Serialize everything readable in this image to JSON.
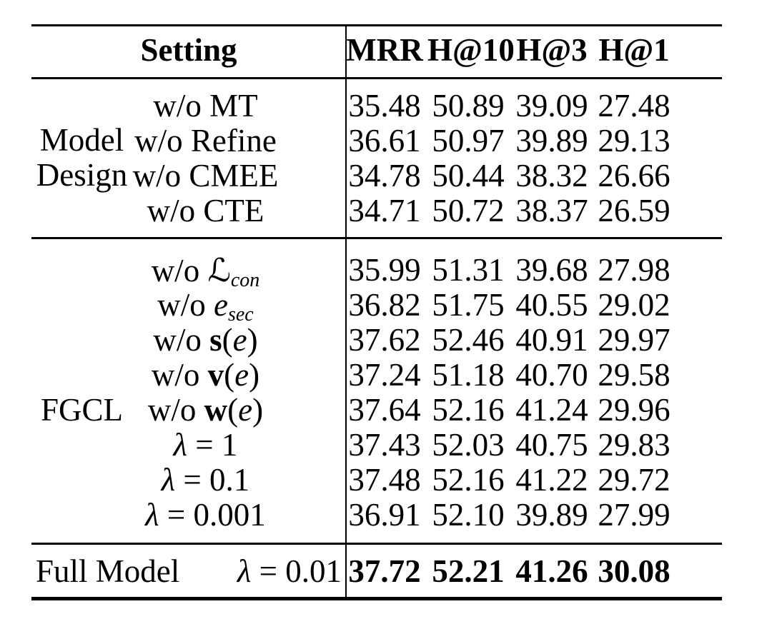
{
  "colors": {
    "text": "#000000",
    "background": "#ffffff",
    "rule": "#000000"
  },
  "header": {
    "setting": "Setting",
    "metrics": [
      "MRR",
      "H@10",
      "H@3",
      "H@1"
    ]
  },
  "groups": [
    {
      "label": "Model Design",
      "rows": [
        {
          "setting": "w/o MT",
          "values": [
            "35.48",
            "50.89",
            "39.09",
            "27.48"
          ]
        },
        {
          "setting": "w/o Refine",
          "values": [
            "36.61",
            "50.97",
            "39.89",
            "29.13"
          ]
        },
        {
          "setting": "w/o CMEE",
          "values": [
            "34.78",
            "50.44",
            "38.32",
            "26.66"
          ]
        },
        {
          "setting": "w/o CTE",
          "values": [
            "34.71",
            "50.72",
            "38.37",
            "26.59"
          ]
        }
      ]
    },
    {
      "label": "FGCL",
      "rows": [
        {
          "pre": "w/o ",
          "main": "ℒ",
          "sub": "con",
          "values": [
            "35.99",
            "51.31",
            "39.68",
            "27.98"
          ]
        },
        {
          "pre": "w/o ",
          "main": "e",
          "sub": "sec",
          "values": [
            "36.82",
            "51.75",
            "40.55",
            "29.02"
          ]
        },
        {
          "pre": "w/o ",
          "main": "s",
          "open": "(",
          "arg": "e",
          "close": ")",
          "values": [
            "37.62",
            "52.46",
            "40.91",
            "29.97"
          ]
        },
        {
          "pre": "w/o ",
          "main": "v",
          "open": "(",
          "arg": "e",
          "close": ")",
          "values": [
            "37.24",
            "51.18",
            "40.70",
            "29.58"
          ]
        },
        {
          "pre": "w/o ",
          "main": "w",
          "open": "(",
          "arg": "e",
          "close": ")",
          "values": [
            "37.64",
            "52.16",
            "41.24",
            "29.96"
          ]
        },
        {
          "lam": "λ",
          "rest": " = 1",
          "values": [
            "37.43",
            "52.03",
            "40.75",
            "29.83"
          ]
        },
        {
          "lam": "λ",
          "rest": " = 0.1",
          "values": [
            "37.48",
            "52.16",
            "41.22",
            "29.72"
          ]
        },
        {
          "lam": "λ",
          "rest": " = 0.001",
          "values": [
            "36.91",
            "52.10",
            "39.89",
            "27.99"
          ]
        }
      ]
    }
  ],
  "full_model": {
    "label": "Full Model",
    "lam": "λ",
    "rest": " = 0.01",
    "values": [
      "37.72",
      "52.21",
      "41.26",
      "30.08"
    ]
  }
}
